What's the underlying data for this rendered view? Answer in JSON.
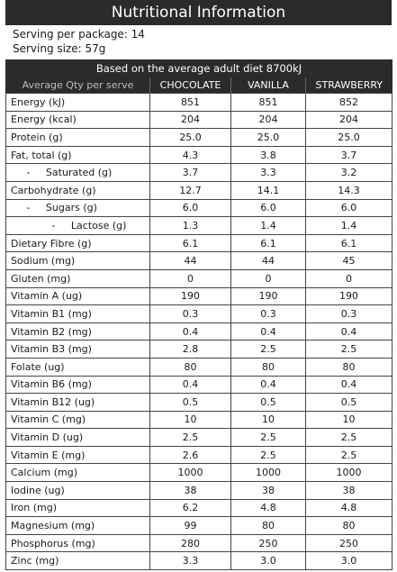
{
  "title": "Nutritional Information",
  "serving_per_package": "Serving per package: 14",
  "serving_size": "Serving size: 57g",
  "banner": "Based on the average adult diet 8700kJ",
  "headers": [
    "Average Qty per serve",
    "CHOCOLATE",
    "VANILLA",
    "STRAWBERRY"
  ],
  "rows": [
    [
      "Energy (kJ)",
      "851",
      "851",
      "852"
    ],
    [
      "Energy (kcal)",
      "204",
      "204",
      "204"
    ],
    [
      "Protein (g)",
      "25.0",
      "25.0",
      "25.0"
    ],
    [
      "Fat, total (g)",
      "4.3",
      "3.8",
      "3.7"
    ],
    [
      "     -     Saturated (g)",
      "3.7",
      "3.3",
      "3.2"
    ],
    [
      "Carbohydrate (g)",
      "12.7",
      "14.1",
      "14.3"
    ],
    [
      "     -     Sugars (g)",
      "6.0",
      "6.0",
      "6.0"
    ],
    [
      "             -     Lactose (g)",
      "1.3",
      "1.4",
      "1.4"
    ],
    [
      "Dietary Fibre (g)",
      "6.1",
      "6.1",
      "6.1"
    ],
    [
      "Sodium (mg)",
      "44",
      "44",
      "45"
    ],
    [
      "Gluten (mg)",
      "0",
      "0",
      "0"
    ],
    [
      "Vitamin A (ug)",
      "190",
      "190",
      "190"
    ],
    [
      "Vitamin B1 (mg)",
      "0.3",
      "0.3",
      "0.3"
    ],
    [
      "Vitamin B2 (mg)",
      "0.4",
      "0.4",
      "0.4"
    ],
    [
      "Vitamin B3 (mg)",
      "2.8",
      "2.5",
      "2.5"
    ],
    [
      "Folate (ug)",
      "80",
      "80",
      "80"
    ],
    [
      "Vitamin B6 (mg)",
      "0.4",
      "0.4",
      "0.4"
    ],
    [
      "Vitamin B12 (ug)",
      "0.5",
      "0.5",
      "0.5"
    ],
    [
      "Vitamin C (mg)",
      "10",
      "10",
      "10"
    ],
    [
      "Vitamin D (ug)",
      "2.5",
      "2.5",
      "2.5"
    ],
    [
      "Vitamin E (mg)",
      "2.6",
      "2.5",
      "2.5"
    ],
    [
      "Calcium (mg)",
      "1000",
      "1000",
      "1000"
    ],
    [
      "Iodine (ug)",
      "38",
      "38",
      "38"
    ],
    [
      "Iron (mg)",
      "6.2",
      "4.8",
      "4.8"
    ],
    [
      "Magnesium (mg)",
      "99",
      "80",
      "80"
    ],
    [
      "Phosphorus (mg)",
      "280",
      "250",
      "250"
    ],
    [
      "Zinc (mg)",
      "3.3",
      "3.0",
      "3.0"
    ]
  ]
}
